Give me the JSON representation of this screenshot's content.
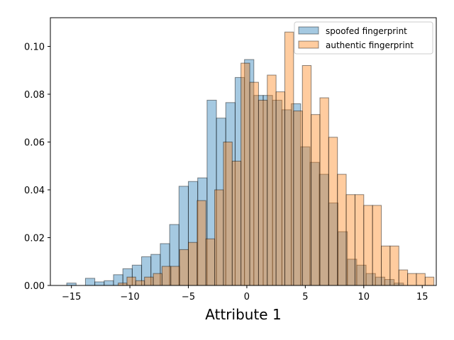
{
  "chart_data": {
    "type": "histogram",
    "title": "",
    "xlabel": "Attribute 1",
    "ylabel": "",
    "xlim": [
      -16.8,
      16.2
    ],
    "ylim": [
      0,
      0.112
    ],
    "grid": false,
    "legend_position": "top-right",
    "xticks": [
      -15,
      -10,
      -5,
      0,
      5,
      10,
      15
    ],
    "yticks": [
      0.0,
      0.02,
      0.04,
      0.06,
      0.08,
      0.1
    ],
    "ytick_labels": [
      "0.00",
      "0.02",
      "0.04",
      "0.06",
      "0.08",
      "0.10"
    ],
    "overlap_color": "#c4a484",
    "series": [
      {
        "name": "spoofed fingerprint",
        "color": "#1f77b4",
        "alpha": 0.4,
        "bins": [
          [
            -15.4,
            -14.6,
            0.001
          ],
          [
            -13.8,
            -13.0,
            0.003
          ],
          [
            -13.0,
            -12.2,
            0.0015
          ],
          [
            -12.2,
            -11.4,
            0.002
          ],
          [
            -11.4,
            -10.6,
            0.0045
          ],
          [
            -10.6,
            -9.8,
            0.007
          ],
          [
            -9.8,
            -9.0,
            0.0085
          ],
          [
            -9.0,
            -8.2,
            0.012
          ],
          [
            -8.2,
            -7.4,
            0.013
          ],
          [
            -7.4,
            -6.6,
            0.0175
          ],
          [
            -6.6,
            -5.8,
            0.0255
          ],
          [
            -5.8,
            -5.0,
            0.0415
          ],
          [
            -5.0,
            -4.2,
            0.0435
          ],
          [
            -4.2,
            -3.4,
            0.045
          ],
          [
            -3.4,
            -2.6,
            0.0775
          ],
          [
            -2.6,
            -1.8,
            0.07
          ],
          [
            -1.8,
            -1.0,
            0.0765
          ],
          [
            -1.0,
            -0.2,
            0.087
          ],
          [
            -0.2,
            0.6,
            0.0945
          ],
          [
            0.6,
            1.4,
            0.0795
          ],
          [
            1.4,
            2.2,
            0.0795
          ],
          [
            2.2,
            3.0,
            0.0775
          ],
          [
            3.0,
            3.8,
            0.0735
          ],
          [
            3.8,
            4.6,
            0.076
          ],
          [
            4.6,
            5.4,
            0.058
          ],
          [
            5.4,
            6.2,
            0.0515
          ],
          [
            6.2,
            7.0,
            0.0465
          ],
          [
            7.0,
            7.8,
            0.0345
          ],
          [
            7.8,
            8.6,
            0.0225
          ],
          [
            8.6,
            9.4,
            0.011
          ],
          [
            9.4,
            10.2,
            0.0085
          ],
          [
            10.2,
            11.0,
            0.005
          ],
          [
            11.0,
            11.8,
            0.0035
          ],
          [
            11.8,
            12.6,
            0.0025
          ],
          [
            12.6,
            13.4,
            0.001
          ]
        ]
      },
      {
        "name": "authentic fingerprint",
        "color": "#ff7f0e",
        "alpha": 0.4,
        "bins": [
          [
            -11.0,
            -10.25,
            0.001
          ],
          [
            -10.25,
            -9.5,
            0.0035
          ],
          [
            -9.5,
            -8.75,
            0.002
          ],
          [
            -8.75,
            -8.0,
            0.0035
          ],
          [
            -8.0,
            -7.25,
            0.005
          ],
          [
            -7.25,
            -6.5,
            0.008
          ],
          [
            -6.5,
            -5.75,
            0.008
          ],
          [
            -5.75,
            -5.0,
            0.015
          ],
          [
            -5.0,
            -4.25,
            0.018
          ],
          [
            -4.25,
            -3.5,
            0.0355
          ],
          [
            -3.5,
            -2.75,
            0.0195
          ],
          [
            -2.75,
            -2.0,
            0.04
          ],
          [
            -2.0,
            -1.25,
            0.06
          ],
          [
            -1.25,
            -0.5,
            0.052
          ],
          [
            -0.5,
            0.25,
            0.093
          ],
          [
            0.25,
            1.0,
            0.085
          ],
          [
            1.0,
            1.75,
            0.0775
          ],
          [
            1.75,
            2.5,
            0.088
          ],
          [
            2.5,
            3.25,
            0.081
          ],
          [
            3.25,
            4.0,
            0.106
          ],
          [
            4.0,
            4.75,
            0.073
          ],
          [
            4.75,
            5.5,
            0.092
          ],
          [
            5.5,
            6.25,
            0.0715
          ],
          [
            6.25,
            7.0,
            0.0785
          ],
          [
            7.0,
            7.75,
            0.062
          ],
          [
            7.75,
            8.5,
            0.0465
          ],
          [
            8.5,
            9.25,
            0.038
          ],
          [
            9.25,
            10.0,
            0.038
          ],
          [
            10.0,
            10.75,
            0.0335
          ],
          [
            10.75,
            11.5,
            0.0335
          ],
          [
            11.5,
            12.25,
            0.0165
          ],
          [
            12.25,
            13.0,
            0.0165
          ],
          [
            13.0,
            13.75,
            0.0065
          ],
          [
            13.75,
            14.5,
            0.005
          ],
          [
            14.5,
            15.25,
            0.005
          ],
          [
            15.25,
            16.0,
            0.0035
          ]
        ]
      }
    ]
  }
}
